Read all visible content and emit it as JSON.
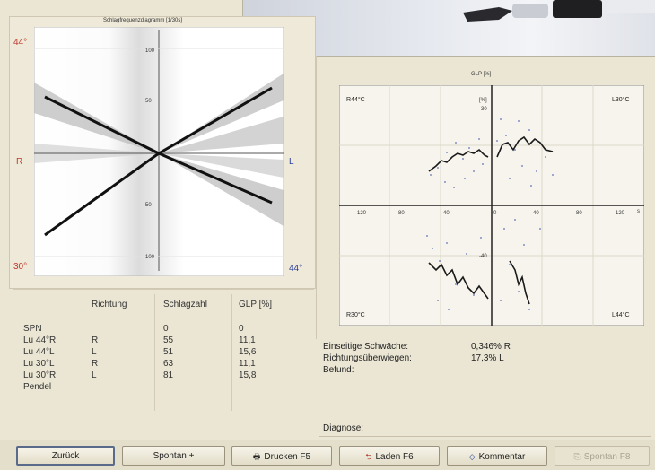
{
  "left_chart": {
    "title": "Schlagfrequenzdiagramm [1/30s]",
    "corner_top_left": "44°",
    "corner_bottom_left": "30°",
    "corner_bottom_right": "44°",
    "side_left": "R",
    "side_right": "L",
    "y_ticks": [
      "100",
      "50",
      "50",
      "100"
    ]
  },
  "right_chart": {
    "title": "GLP [%]",
    "q_top_left": "R44°C",
    "q_top_right": "L30°C",
    "q_bottom_left": "R30°C",
    "q_bottom_right": "L44°C",
    "y_label": "[%]",
    "y_top_tick": "30",
    "y_bottom_tick": "-40",
    "x_ticks": [
      "120",
      "80",
      "40",
      "0",
      "40",
      "80",
      "120"
    ],
    "x_unit": "s"
  },
  "table": {
    "headers": [
      "Richtung",
      "Schlagzahl",
      "GLP [%]"
    ],
    "rows": [
      {
        "label": "SPN",
        "richtung": "",
        "schlagzahl": "0",
        "glp": "0"
      },
      {
        "label": "Lu 44°R",
        "richtung": "R",
        "schlagzahl": "55",
        "glp": "11,1"
      },
      {
        "label": "Lu 44°L",
        "richtung": "L",
        "schlagzahl": "51",
        "glp": "15,6"
      },
      {
        "label": "Lu 30°L",
        "richtung": "R",
        "schlagzahl": "63",
        "glp": "11,1"
      },
      {
        "label": "Lu 30°R",
        "richtung": "L",
        "schlagzahl": "81",
        "glp": "15,8"
      },
      {
        "label": "Pendel",
        "richtung": "",
        "schlagzahl": "",
        "glp": ""
      }
    ]
  },
  "results": {
    "einseitige_label": "Einseitige Schwäche:",
    "einseitige_value": "0,346% R",
    "richtung_label": "Richtungsüberwiegen:",
    "richtung_value": "17,3% L",
    "befund_label": "Befund:",
    "diagnose_label": "Diagnose:"
  },
  "buttons": {
    "back": "Zurück",
    "spontan_plus": "Spontan +",
    "print": "Drucken F5",
    "load": "Laden F6",
    "comment": "Kommentar",
    "save_spontan": "Spontan F8"
  }
}
